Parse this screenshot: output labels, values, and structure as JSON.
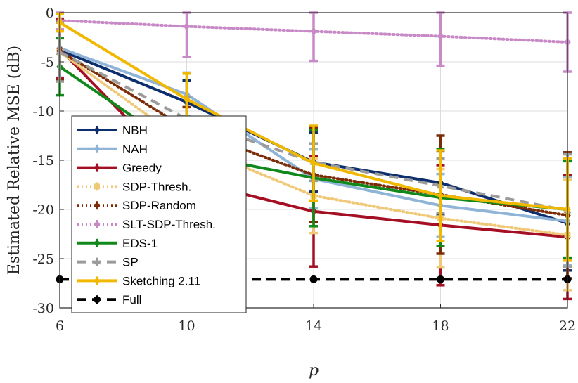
{
  "chart_data": {
    "type": "line",
    "title": "",
    "xlabel": "p",
    "ylabel": "Estimated Relative MSE (dB)",
    "x": [
      6,
      10,
      14,
      18,
      22
    ],
    "xlim": [
      6,
      22
    ],
    "ylim": [
      -30,
      0
    ],
    "xticks": [
      "6",
      "10",
      "14",
      "18",
      "22"
    ],
    "yticks": [
      "0",
      "-5",
      "-10",
      "-15",
      "-20",
      "-25",
      "-30"
    ],
    "grid": true,
    "legend_position": "center-left",
    "series": [
      {
        "name": "NBH",
        "color": "#0e2f6e",
        "dash": "solid",
        "marker": "diamond",
        "values": [
          -3.8,
          -9.1,
          -15.2,
          -17.3,
          -21.4
        ],
        "errors": [
          3.0,
          2.2,
          3.0,
          3.2,
          4.8
        ]
      },
      {
        "name": "NAH",
        "color": "#8fb4d8",
        "dash": "solid",
        "marker": "diamond",
        "values": [
          -3.6,
          -8.3,
          -16.9,
          -19.6,
          -21.2
        ],
        "errors": [
          3.0,
          2.2,
          3.0,
          3.2,
          4.5
        ]
      },
      {
        "name": "Greedy",
        "color": "#a50f23",
        "dash": "solid",
        "marker": "diamond",
        "values": [
          -3.7,
          -17.0,
          -20.2,
          -21.6,
          -22.8
        ],
        "errors": [
          3.0,
          2.2,
          5.6,
          6.1,
          6.3
        ]
      },
      {
        "name": "SDP-Thresh.",
        "color": "#f0c978",
        "dash": "dot",
        "marker": "square",
        "values": [
          -4.0,
          -13.3,
          -18.6,
          -20.9,
          -22.6
        ],
        "errors": [
          3.0,
          2.2,
          3.8,
          5.0,
          5.6
        ]
      },
      {
        "name": "SDP-Random",
        "color": "#7b2b05",
        "dash": "dot",
        "marker": "diamond",
        "values": [
          -3.9,
          -11.8,
          -16.5,
          -18.5,
          -20.6
        ],
        "errors": [
          3.0,
          2.2,
          4.8,
          6.0,
          6.4
        ]
      },
      {
        "name": "SLT-SDP-Thresh.",
        "color": "#c88ac6",
        "dash": "dot",
        "marker": "diamond",
        "values": [
          -0.8,
          -1.4,
          -1.9,
          -2.4,
          -3.0
        ],
        "errors": [
          0.9,
          3.1,
          3.0,
          3.0,
          3.0
        ]
      },
      {
        "name": "EDS-1",
        "color": "#11891a",
        "dash": "solid",
        "marker": "diamond",
        "values": [
          -5.5,
          -14.3,
          -16.8,
          -18.8,
          -20.0
        ],
        "errors": [
          2.9,
          2.2,
          4.9,
          4.9,
          4.9
        ]
      },
      {
        "name": "SP",
        "color": "#9b9b9b",
        "dash": "dash",
        "marker": "triangle",
        "values": [
          -4.0,
          -10.8,
          -15.2,
          -17.6,
          -20.1
        ],
        "errors": [
          3.0,
          2.2,
          1.9,
          2.8,
          5.7
        ]
      },
      {
        "name": "Sketching 2.11",
        "color": "#f0b800",
        "dash": "solid",
        "marker": "diamond",
        "values": [
          -1.0,
          -8.8,
          -15.3,
          -18.6,
          -20.0
        ],
        "errors": [
          0.9,
          2.6,
          3.8,
          4.6,
          5.2
        ]
      },
      {
        "name": "Full",
        "color": "#000000",
        "dash": "dash",
        "marker": "circle",
        "values": [
          -27.1,
          -27.1,
          -27.1,
          -27.1,
          -27.1
        ],
        "errors": [
          0,
          0,
          0,
          0,
          0
        ]
      }
    ]
  }
}
